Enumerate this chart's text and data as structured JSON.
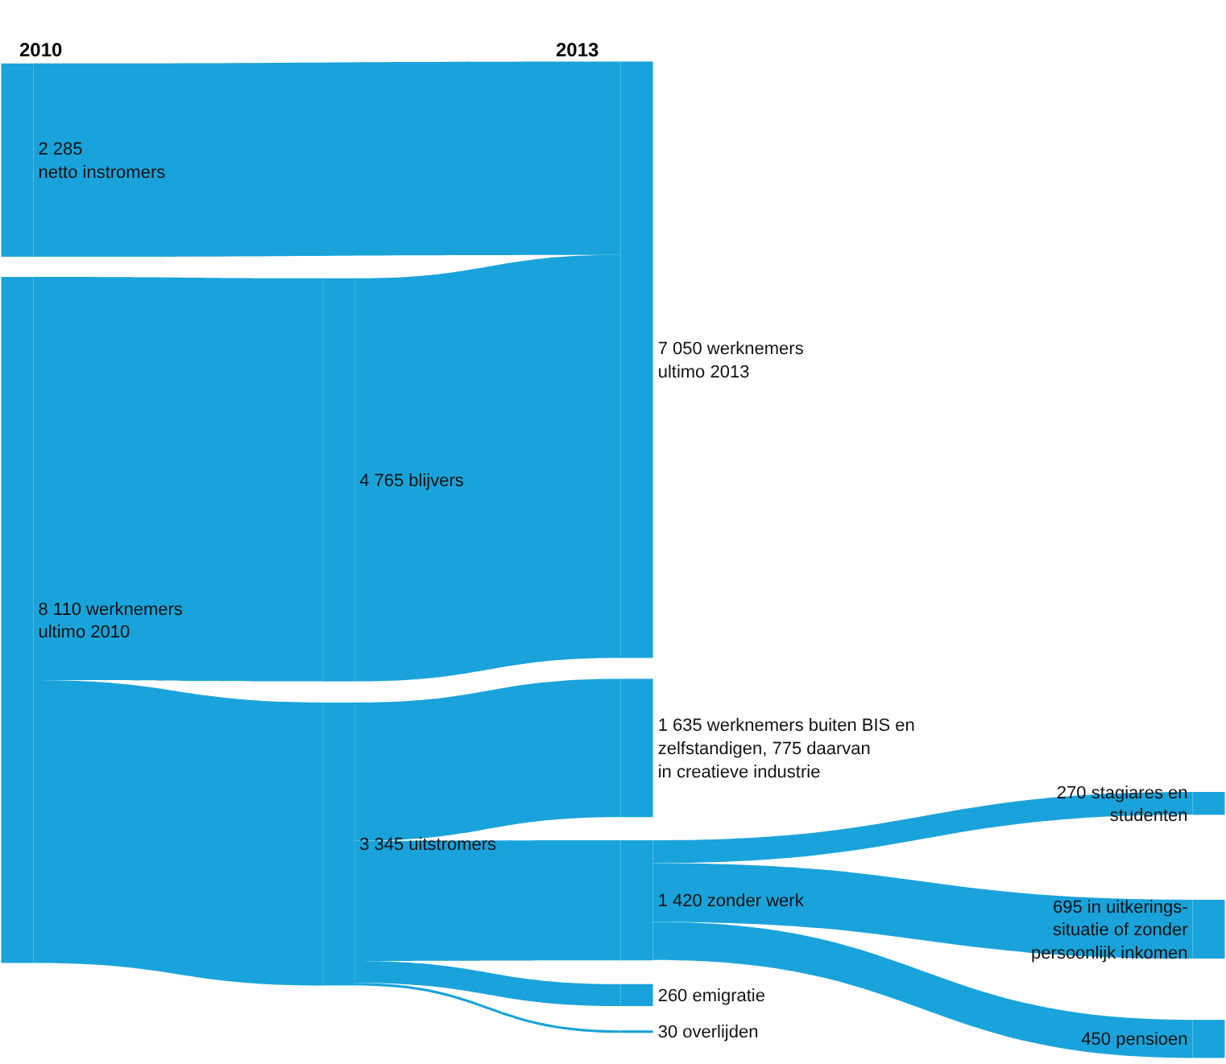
{
  "chart_data": {
    "type": "other",
    "annotations": [
      "2010",
      "2013"
    ],
    "categories": [
      "werknemers\nultimo 2010",
      "\nnetto instromers",
      "blijvers",
      "uitstromers",
      "werknemers\nultimo 2013",
      "werknemers buiten BIS en\nzelfstandigen, 775 daarvan\nin creatieve industrie",
      "zonder werk",
      "emigratie",
      "overlijden",
      "stagiares en\nstudenten",
      "in uitkerings-\nsituatie of zonder\npersoonlijk inkomen",
      "pensioen"
    ],
    "data_labels": true,
    "values": [
      8110,
      2285,
      4765,
      3345,
      7050,
      1635,
      1420,
      260,
      30,
      270,
      695,
      450
    ],
    "color": "#1aa3da"
  }
}
